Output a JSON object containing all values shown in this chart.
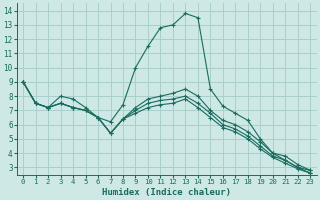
{
  "xlabel": "Humidex (Indice chaleur)",
  "xlim": [
    -0.5,
    23.5
  ],
  "ylim": [
    2.5,
    14.5
  ],
  "xticks": [
    0,
    1,
    2,
    3,
    4,
    5,
    6,
    7,
    8,
    9,
    10,
    11,
    12,
    13,
    14,
    15,
    16,
    17,
    18,
    19,
    20,
    21,
    22,
    23
  ],
  "yticks": [
    3,
    4,
    5,
    6,
    7,
    8,
    9,
    10,
    11,
    12,
    13,
    14
  ],
  "bg_color": "#cde8e5",
  "line_color": "#1a6b5e",
  "grid_color": "#aacfcb",
  "lines": [
    {
      "x": [
        0,
        1,
        2,
        3,
        4,
        5,
        6,
        7,
        8,
        9,
        10,
        11,
        12,
        13,
        14,
        15,
        16,
        17,
        18,
        19,
        20,
        21,
        22,
        23
      ],
      "y": [
        9.0,
        7.5,
        7.2,
        8.0,
        7.8,
        7.2,
        6.5,
        6.2,
        7.4,
        10.0,
        11.5,
        12.8,
        13.0,
        13.8,
        13.5,
        8.5,
        7.3,
        6.8,
        6.3,
        5.0,
        4.0,
        3.5,
        3.0,
        2.8
      ]
    },
    {
      "x": [
        0,
        1,
        2,
        3,
        4,
        5,
        6,
        7,
        8,
        9,
        10,
        11,
        12,
        13,
        14,
        15,
        16,
        17,
        18,
        19,
        20,
        21,
        22,
        23
      ],
      "y": [
        9.0,
        7.5,
        7.2,
        7.5,
        7.2,
        7.0,
        6.5,
        5.4,
        6.4,
        7.2,
        7.8,
        8.0,
        8.2,
        8.5,
        8.0,
        7.0,
        6.3,
        6.0,
        5.5,
        4.8,
        4.0,
        3.8,
        3.2,
        2.8
      ]
    },
    {
      "x": [
        0,
        1,
        2,
        3,
        4,
        5,
        6,
        7,
        8,
        9,
        10,
        11,
        12,
        13,
        14,
        15,
        16,
        17,
        18,
        19,
        20,
        21,
        22,
        23
      ],
      "y": [
        9.0,
        7.5,
        7.2,
        7.5,
        7.2,
        7.0,
        6.5,
        5.4,
        6.4,
        7.0,
        7.5,
        7.7,
        7.8,
        8.0,
        7.5,
        6.8,
        6.0,
        5.7,
        5.2,
        4.5,
        3.8,
        3.5,
        3.0,
        2.6
      ]
    },
    {
      "x": [
        0,
        1,
        2,
        3,
        4,
        5,
        6,
        7,
        8,
        9,
        10,
        11,
        12,
        13,
        14,
        15,
        16,
        17,
        18,
        19,
        20,
        21,
        22,
        23
      ],
      "y": [
        9.0,
        7.5,
        7.2,
        7.5,
        7.2,
        7.0,
        6.5,
        5.4,
        6.4,
        6.8,
        7.2,
        7.4,
        7.5,
        7.8,
        7.2,
        6.5,
        5.8,
        5.5,
        5.0,
        4.3,
        3.7,
        3.3,
        2.9,
        2.6
      ]
    }
  ]
}
